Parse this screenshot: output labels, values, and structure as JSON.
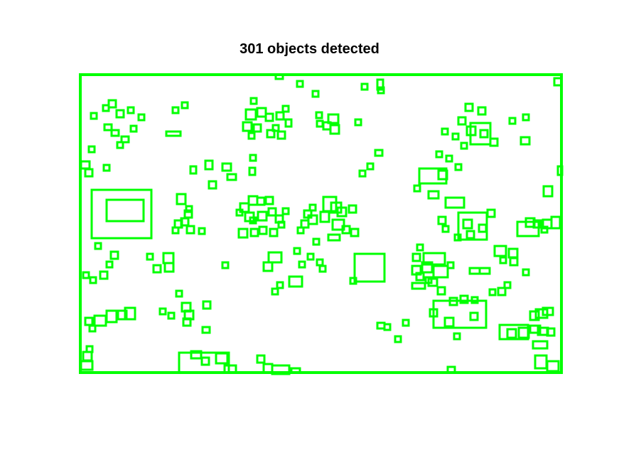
{
  "figure": {
    "title": "301 objects detected",
    "box_color": "#00ff00"
  }
}
